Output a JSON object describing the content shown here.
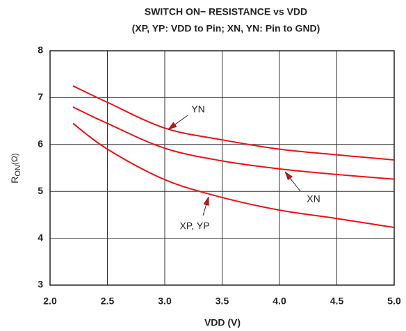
{
  "chart_data": {
    "type": "line",
    "title": "SWITCH ON− RESISTANCE vs VDD",
    "subtitle": "(XP, YP: VDD to Pin; XN, YN: Pin to GND)",
    "x_label": "VDD (V)",
    "y_label_main": "R",
    "y_label_sub": "ON",
    "y_label_unit": "(Ω)",
    "x": [
      2.2,
      2.5,
      3.0,
      3.5,
      4.0,
      4.5,
      5.0
    ],
    "series": [
      {
        "name": "YN",
        "color": "#ee1111",
        "values": [
          7.25,
          6.9,
          6.35,
          6.1,
          5.9,
          5.78,
          5.67
        ]
      },
      {
        "name": "XN",
        "color": "#ee1111",
        "values": [
          6.8,
          6.45,
          5.92,
          5.65,
          5.48,
          5.36,
          5.26
        ]
      },
      {
        "name": "XP, YP",
        "color": "#ee1111",
        "values": [
          6.45,
          5.9,
          5.25,
          4.87,
          4.6,
          4.42,
          4.23
        ]
      }
    ],
    "xlim": [
      2,
      5
    ],
    "ylim": [
      3,
      8
    ],
    "xticks": [
      {
        "value": 2,
        "label": "2.0"
      },
      2.5,
      {
        "value": 3,
        "label": "3.0"
      },
      3.5,
      {
        "value": 4,
        "label": "4.0"
      },
      4.5,
      {
        "value": 5,
        "label": "5.0"
      }
    ],
    "yticks": [
      3,
      4,
      5,
      6,
      7,
      8
    ],
    "grid": true
  }
}
